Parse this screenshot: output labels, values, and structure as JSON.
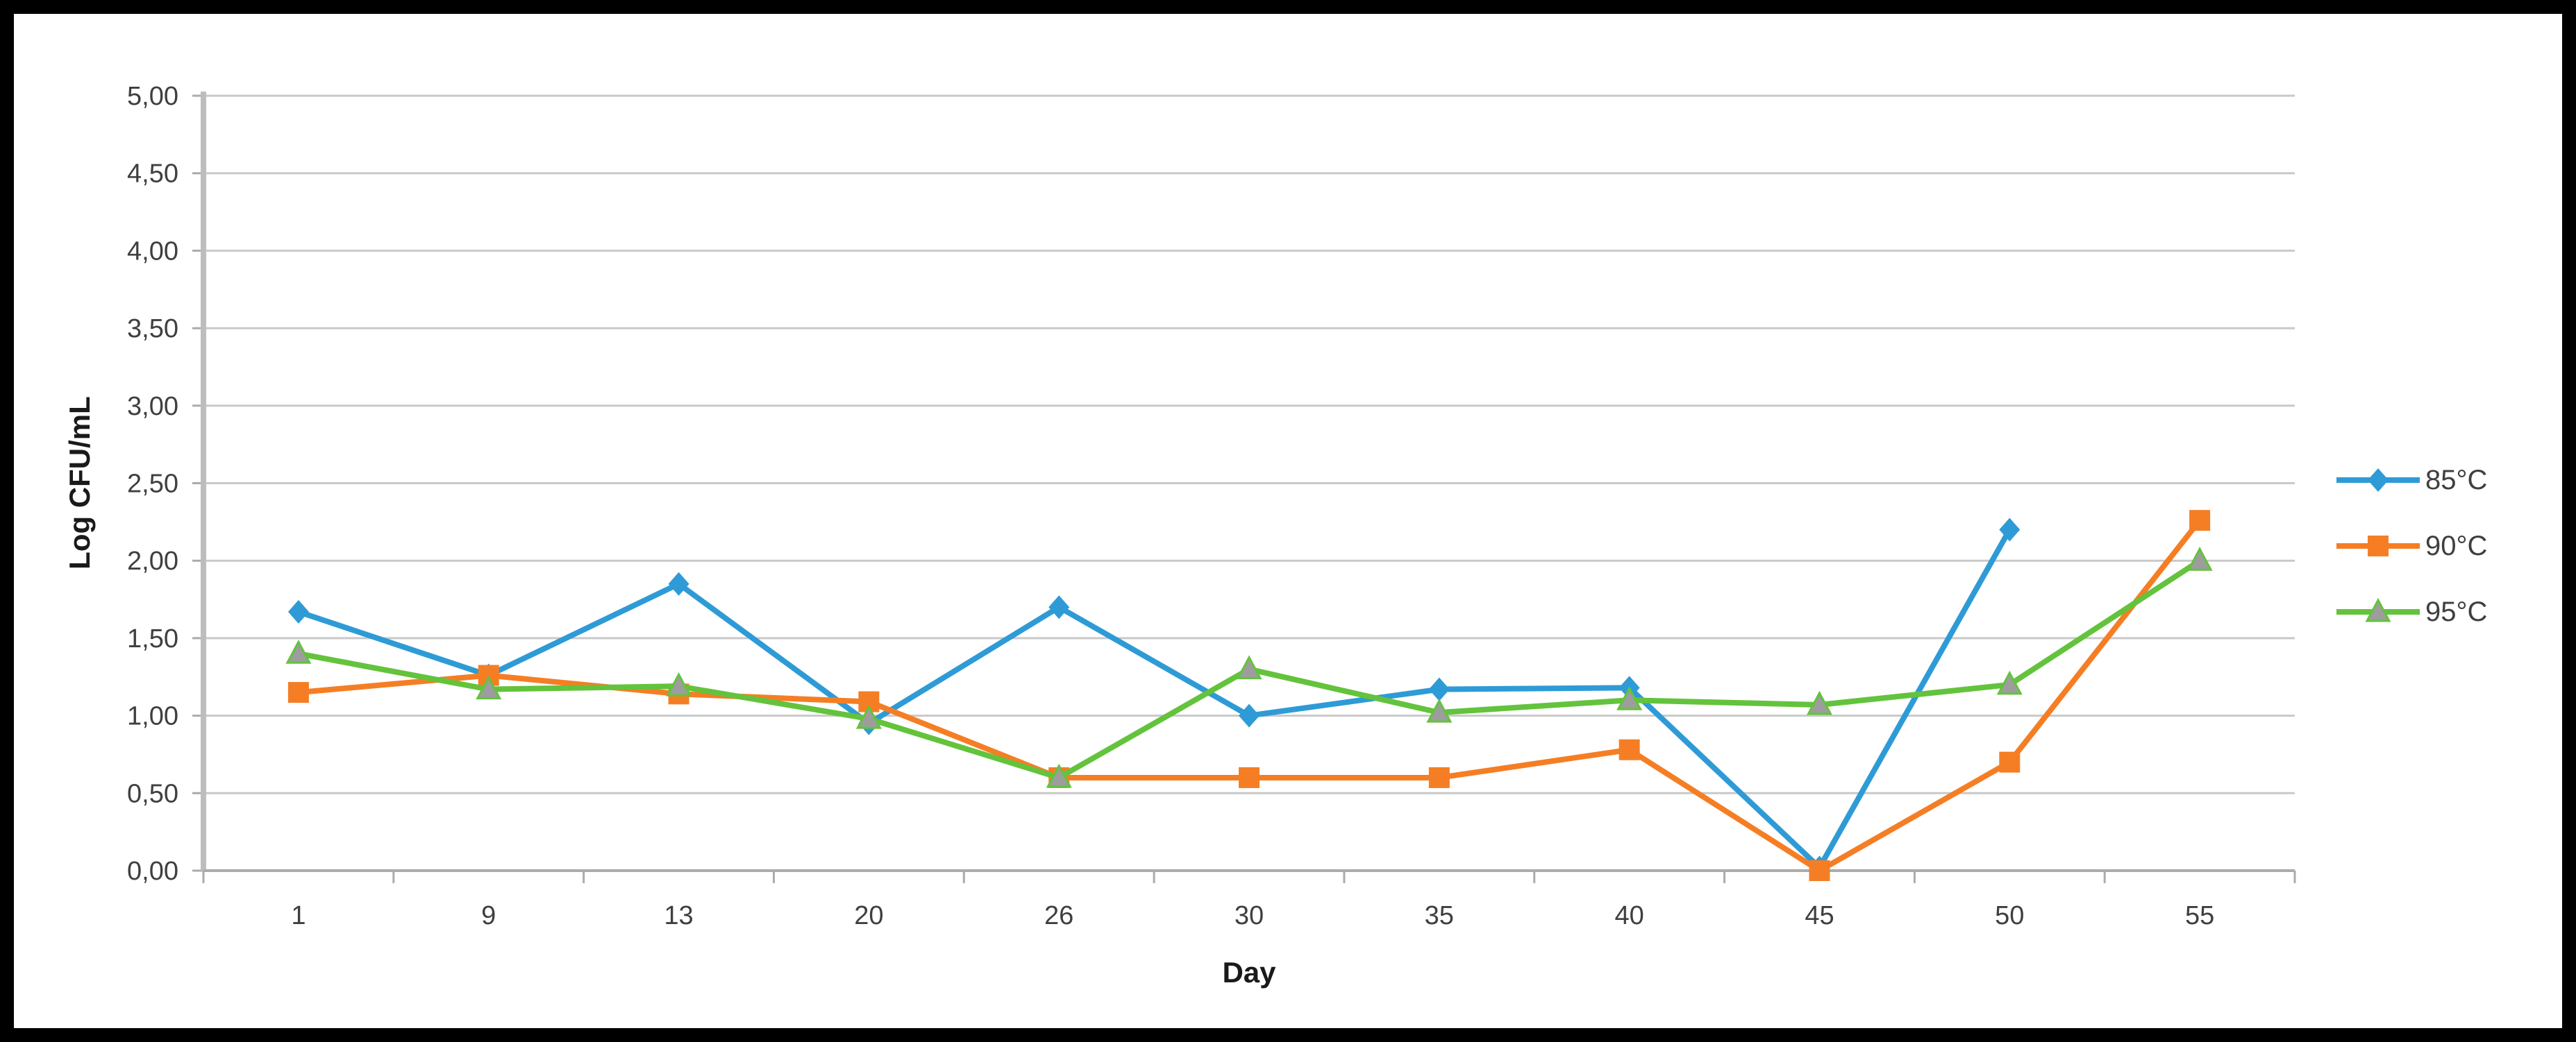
{
  "figure": {
    "background": "#ffffff",
    "border_color": "#000000"
  },
  "chart_data": {
    "type": "line",
    "title": "",
    "xlabel": "Day",
    "ylabel": "Log CFU/mL",
    "x_categories": [
      "1",
      "9",
      "13",
      "20",
      "26",
      "30",
      "35",
      "40",
      "45",
      "50",
      "55"
    ],
    "ylim": [
      0,
      5
    ],
    "ytick_step": 0.5,
    "ytick_labels": [
      "0,00",
      "0,50",
      "1,00",
      "1,50",
      "2,00",
      "2,50",
      "3,00",
      "3,50",
      "4,00",
      "4,50",
      "5,00"
    ],
    "grid": "horizontal",
    "grid_color": "#c9c9c9",
    "axis_color": "#ababab",
    "tick_label_color": "#3f3f3f",
    "legend_position": "right",
    "series": [
      {
        "name": "85°C",
        "color": "#2e9bd6",
        "marker": "diamond",
        "marker_fill": "#2e9bd6",
        "values": [
          1.67,
          1.26,
          1.85,
          0.95,
          1.7,
          1.0,
          1.17,
          1.18,
          0.02,
          2.2,
          null
        ]
      },
      {
        "name": "90°C",
        "color": "#f57e25",
        "marker": "square",
        "marker_fill": "#f57e25",
        "values": [
          1.15,
          1.26,
          1.14,
          1.09,
          0.6,
          0.6,
          0.6,
          0.78,
          0.0,
          0.7,
          2.26
        ]
      },
      {
        "name": "95°C",
        "color": "#63c33c",
        "marker": "triangle",
        "marker_fill": "#9d9d9d",
        "values": [
          1.4,
          1.17,
          1.19,
          0.98,
          0.6,
          1.3,
          1.02,
          1.1,
          1.07,
          1.2,
          2.0
        ]
      }
    ]
  }
}
